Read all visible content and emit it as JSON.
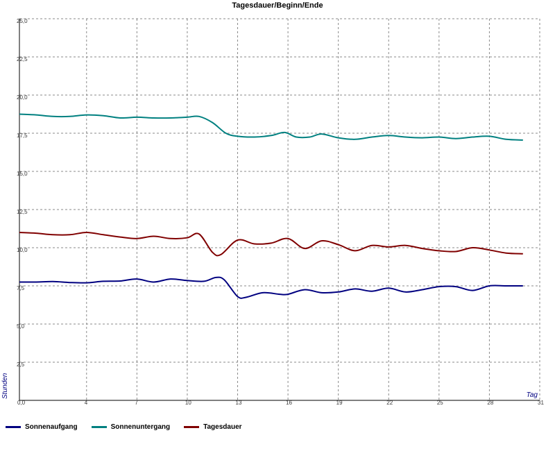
{
  "chart_data": {
    "type": "line",
    "title": "Tagesdauer/Beginn/Ende",
    "xlabel": "Tag",
    "ylabel": "Stunden",
    "xlim": [
      0,
      31
    ],
    "ylim": [
      0,
      25
    ],
    "x_ticks": [
      0,
      4,
      7,
      10,
      13,
      16,
      19,
      22,
      25,
      28,
      31
    ],
    "x_tick_labels": [
      "0,0",
      "4",
      "7",
      "10",
      "13",
      "16",
      "19",
      "22",
      "25",
      "28",
      "31"
    ],
    "y_ticks": [
      2.5,
      5,
      7.5,
      10,
      12.5,
      15,
      17.5,
      20,
      22.5,
      25
    ],
    "y_tick_labels": [
      "2,5",
      "5,0",
      "7,5",
      "10,0",
      "12,5",
      "15,0",
      "17,5",
      "20,0",
      "22,5",
      "25,0"
    ],
    "grid": true,
    "legend_position": "bottom-left",
    "series": [
      {
        "name": "Sonnenaufgang",
        "color": "#000080",
        "points": [
          [
            0,
            7.75
          ],
          [
            1,
            7.75
          ],
          [
            2,
            7.78
          ],
          [
            3,
            7.72
          ],
          [
            4,
            7.7
          ],
          [
            5,
            7.8
          ],
          [
            6,
            7.82
          ],
          [
            7,
            7.95
          ],
          [
            8,
            7.75
          ],
          [
            9,
            7.95
          ],
          [
            10,
            7.85
          ],
          [
            11,
            7.8
          ],
          [
            11.7,
            8.05
          ],
          [
            12.2,
            7.9
          ],
          [
            13,
            6.8
          ],
          [
            13.5,
            6.75
          ],
          [
            14.5,
            7.05
          ],
          [
            15.5,
            6.95
          ],
          [
            16,
            6.95
          ],
          [
            17,
            7.25
          ],
          [
            18,
            7.05
          ],
          [
            19,
            7.1
          ],
          [
            20,
            7.3
          ],
          [
            21,
            7.15
          ],
          [
            22,
            7.35
          ],
          [
            23,
            7.1
          ],
          [
            24,
            7.25
          ],
          [
            25,
            7.45
          ],
          [
            26,
            7.45
          ],
          [
            27,
            7.2
          ],
          [
            28,
            7.5
          ],
          [
            29,
            7.5
          ],
          [
            30,
            7.5
          ]
        ]
      },
      {
        "name": "Sonnenuntergang",
        "color": "#008080",
        "points": [
          [
            0,
            18.75
          ],
          [
            1,
            18.7
          ],
          [
            2,
            18.6
          ],
          [
            3,
            18.6
          ],
          [
            4,
            18.7
          ],
          [
            5,
            18.65
          ],
          [
            6,
            18.5
          ],
          [
            7,
            18.55
          ],
          [
            8,
            18.5
          ],
          [
            9,
            18.5
          ],
          [
            10,
            18.55
          ],
          [
            10.7,
            18.6
          ],
          [
            11.5,
            18.2
          ],
          [
            12.3,
            17.5
          ],
          [
            13,
            17.3
          ],
          [
            14,
            17.25
          ],
          [
            15,
            17.35
          ],
          [
            15.8,
            17.55
          ],
          [
            16.5,
            17.25
          ],
          [
            17.3,
            17.25
          ],
          [
            18,
            17.45
          ],
          [
            19,
            17.2
          ],
          [
            20,
            17.1
          ],
          [
            21,
            17.25
          ],
          [
            22,
            17.35
          ],
          [
            23,
            17.25
          ],
          [
            24,
            17.2
          ],
          [
            25,
            17.25
          ],
          [
            26,
            17.15
          ],
          [
            27,
            17.25
          ],
          [
            28,
            17.3
          ],
          [
            29,
            17.1
          ],
          [
            30,
            17.05
          ]
        ]
      },
      {
        "name": "Tagesdauer",
        "color": "#800000",
        "points": [
          [
            0,
            11.0
          ],
          [
            1,
            10.95
          ],
          [
            2,
            10.85
          ],
          [
            3,
            10.85
          ],
          [
            4,
            11.0
          ],
          [
            5,
            10.85
          ],
          [
            6,
            10.7
          ],
          [
            7,
            10.6
          ],
          [
            8,
            10.75
          ],
          [
            9,
            10.6
          ],
          [
            10,
            10.65
          ],
          [
            10.7,
            10.9
          ],
          [
            11.5,
            9.7
          ],
          [
            12,
            9.55
          ],
          [
            13,
            10.5
          ],
          [
            14,
            10.25
          ],
          [
            15,
            10.3
          ],
          [
            16,
            10.6
          ],
          [
            17,
            9.95
          ],
          [
            18,
            10.45
          ],
          [
            19,
            10.2
          ],
          [
            20,
            9.8
          ],
          [
            21,
            10.15
          ],
          [
            22,
            10.05
          ],
          [
            23,
            10.15
          ],
          [
            24,
            9.95
          ],
          [
            25,
            9.8
          ],
          [
            26,
            9.75
          ],
          [
            27,
            10.0
          ],
          [
            28,
            9.85
          ],
          [
            29,
            9.65
          ],
          [
            30,
            9.6
          ]
        ]
      }
    ]
  }
}
